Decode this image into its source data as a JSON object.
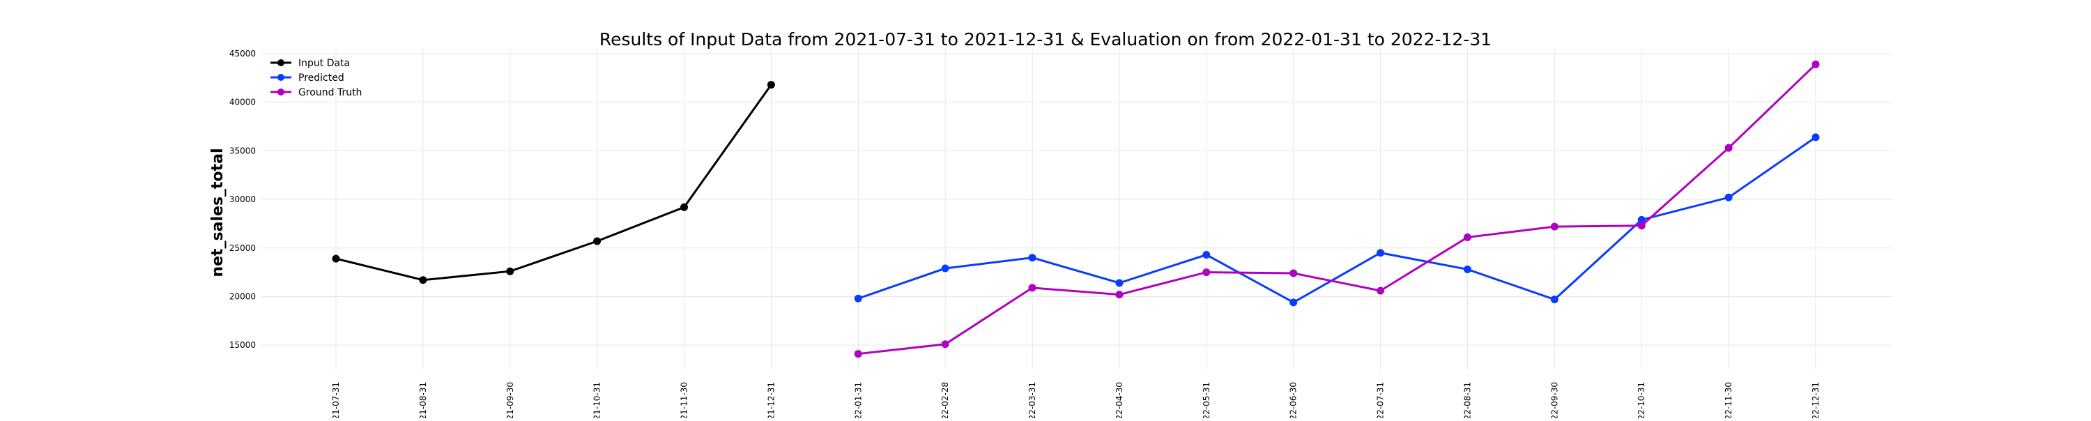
{
  "chart_data": {
    "type": "line",
    "title": "Results of Input Data from 2021-07-31 to 2021-12-31 & Evaluation on from 2022-01-31 to 2022-12-31",
    "xlabel": "",
    "ylabel": "net_sales_total",
    "ylim": [
      12500,
      45500
    ],
    "yticks": [
      15000,
      20000,
      25000,
      30000,
      35000,
      40000,
      45000
    ],
    "grid": true,
    "legend_position": "top-left",
    "categories": [
      "-21-07-31",
      "-21-08-31",
      "-21-09-30",
      "-21-10-31",
      "-21-11-30",
      "-21-12-31",
      "-22-01-31",
      "-22-02-28",
      "-22-03-31",
      "-22-04-30",
      "-22-05-31",
      "-22-06-30",
      "-22-07-31",
      "-22-08-31",
      "-22-09-30",
      "-22-10-31",
      "-22-11-30",
      "-22-12-31"
    ],
    "series": [
      {
        "name": "Input Data",
        "color": "#000000",
        "x": [
          "-21-07-31",
          "-21-08-31",
          "-21-09-30",
          "-21-10-31",
          "-21-11-30",
          "-21-12-31"
        ],
        "values": [
          23900,
          21700,
          22600,
          25700,
          29200,
          41800
        ]
      },
      {
        "name": "Predicted",
        "color": "#0a3cff",
        "x": [
          "-22-01-31",
          "-22-02-28",
          "-22-03-31",
          "-22-04-30",
          "-22-05-31",
          "-22-06-30",
          "-22-07-31",
          "-22-08-31",
          "-22-09-30",
          "-22-10-31",
          "-22-11-30",
          "-22-12-31"
        ],
        "values": [
          19800,
          22900,
          24000,
          21400,
          24300,
          19400,
          24500,
          22800,
          19700,
          27900,
          30200,
          36400
        ]
      },
      {
        "name": "Ground Truth",
        "color": "#b000c0",
        "x": [
          "-22-01-31",
          "-22-02-28",
          "-22-03-31",
          "-22-04-30",
          "-22-05-31",
          "-22-06-30",
          "-22-07-31",
          "-22-08-31",
          "-22-09-30",
          "-22-10-31",
          "-22-11-30",
          "-22-12-31"
        ],
        "values": [
          14100,
          15100,
          20900,
          20200,
          22500,
          22400,
          20600,
          26100,
          27200,
          27300,
          35300,
          43900
        ]
      }
    ]
  }
}
